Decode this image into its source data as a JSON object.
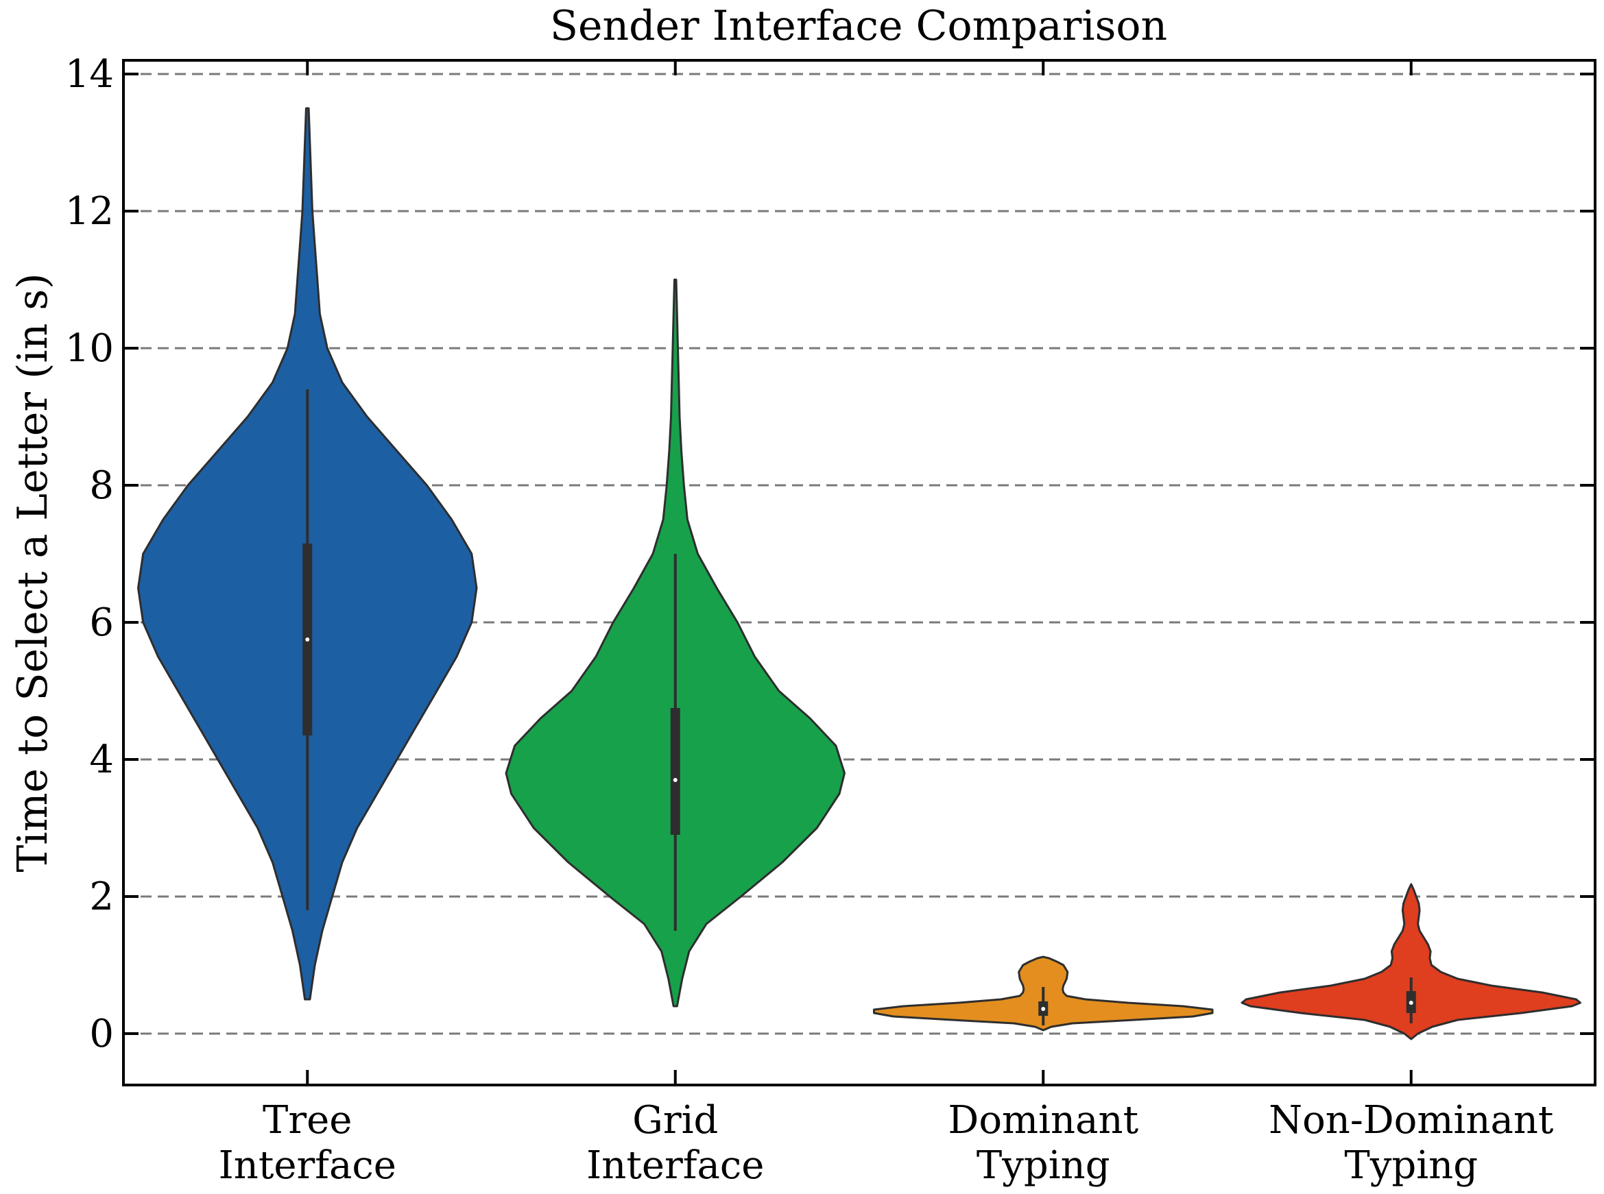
{
  "chart_data": {
    "type": "violin",
    "title": "Sender Interface Comparison",
    "xlabel": "",
    "ylabel": "Time to Select a Letter (in s)",
    "ylim": [
      -0.75,
      14.2
    ],
    "yticks": [
      0,
      2,
      4,
      6,
      8,
      10,
      12,
      14
    ],
    "grid": {
      "y": true,
      "style": "dashed"
    },
    "categories": [
      {
        "lines": [
          "Tree",
          "Interface"
        ]
      },
      {
        "lines": [
          "Grid",
          "Interface"
        ]
      },
      {
        "lines": [
          "Dominant",
          "Typing"
        ]
      },
      {
        "lines": [
          "Non-Dominant",
          "Typing"
        ]
      }
    ],
    "series": [
      {
        "color": "#1d5fa3",
        "min": 0.5,
        "max": 13.5,
        "q1": 4.35,
        "median": 5.75,
        "q3": 7.15,
        "whisker_low": 1.8,
        "whisker_high": 9.4,
        "density": [
          [
            0.5,
            0.01
          ],
          [
            1.0,
            0.03
          ],
          [
            1.5,
            0.06
          ],
          [
            2.0,
            0.1
          ],
          [
            2.5,
            0.14
          ],
          [
            3.0,
            0.2
          ],
          [
            3.5,
            0.28
          ],
          [
            4.0,
            0.36
          ],
          [
            4.5,
            0.44
          ],
          [
            5.0,
            0.52
          ],
          [
            5.5,
            0.6
          ],
          [
            6.0,
            0.66
          ],
          [
            6.5,
            0.68
          ],
          [
            7.0,
            0.66
          ],
          [
            7.5,
            0.58
          ],
          [
            8.0,
            0.48
          ],
          [
            8.5,
            0.36
          ],
          [
            9.0,
            0.24
          ],
          [
            9.5,
            0.14
          ],
          [
            10.0,
            0.08
          ],
          [
            10.5,
            0.05
          ],
          [
            11.0,
            0.04
          ],
          [
            11.5,
            0.03
          ],
          [
            12.0,
            0.02
          ],
          [
            12.5,
            0.015
          ],
          [
            13.0,
            0.01
          ],
          [
            13.5,
            0.005
          ]
        ]
      },
      {
        "color": "#17a14b",
        "min": 0.4,
        "max": 11.0,
        "q1": 2.9,
        "median": 3.7,
        "q3": 4.75,
        "whisker_low": 1.5,
        "whisker_high": 7.0,
        "density": [
          [
            0.4,
            0.01
          ],
          [
            0.8,
            0.04
          ],
          [
            1.2,
            0.08
          ],
          [
            1.6,
            0.18
          ],
          [
            2.0,
            0.38
          ],
          [
            2.5,
            0.62
          ],
          [
            3.0,
            0.82
          ],
          [
            3.5,
            0.95
          ],
          [
            3.8,
            0.98
          ],
          [
            4.2,
            0.93
          ],
          [
            4.6,
            0.78
          ],
          [
            5.0,
            0.6
          ],
          [
            5.5,
            0.46
          ],
          [
            6.0,
            0.36
          ],
          [
            6.5,
            0.24
          ],
          [
            7.0,
            0.13
          ],
          [
            7.5,
            0.07
          ],
          [
            8.0,
            0.05
          ],
          [
            8.5,
            0.035
          ],
          [
            9.0,
            0.025
          ],
          [
            9.5,
            0.02
          ],
          [
            10.0,
            0.015
          ],
          [
            10.5,
            0.01
          ],
          [
            11.0,
            0.005
          ]
        ]
      },
      {
        "color": "#e38e1e",
        "min": 0.05,
        "max": 1.12,
        "q1": 0.26,
        "median": 0.36,
        "q3": 0.47,
        "whisker_low": 0.12,
        "whisker_high": 0.68,
        "density": [
          [
            0.05,
            0.0
          ],
          [
            0.1,
            0.25
          ],
          [
            0.15,
            0.9
          ],
          [
            0.2,
            2.8
          ],
          [
            0.25,
            4.6
          ],
          [
            0.3,
            5.2
          ],
          [
            0.35,
            5.2
          ],
          [
            0.4,
            4.3
          ],
          [
            0.45,
            2.6
          ],
          [
            0.5,
            1.3
          ],
          [
            0.55,
            0.72
          ],
          [
            0.6,
            0.62
          ],
          [
            0.65,
            0.6
          ],
          [
            0.7,
            0.62
          ],
          [
            0.8,
            0.72
          ],
          [
            0.9,
            0.75
          ],
          [
            1.0,
            0.62
          ],
          [
            1.05,
            0.42
          ],
          [
            1.1,
            0.18
          ],
          [
            1.12,
            0.0
          ]
        ]
      },
      {
        "color": "#df3e1f",
        "min": -0.08,
        "max": 2.18,
        "q1": 0.3,
        "median": 0.45,
        "q3": 0.62,
        "whisker_low": 0.15,
        "whisker_high": 0.82,
        "density": [
          [
            -0.08,
            0.0
          ],
          [
            0.0,
            0.08
          ],
          [
            0.1,
            0.25
          ],
          [
            0.2,
            0.55
          ],
          [
            0.3,
            1.3
          ],
          [
            0.4,
            1.9
          ],
          [
            0.45,
            2.0
          ],
          [
            0.5,
            1.95
          ],
          [
            0.6,
            1.55
          ],
          [
            0.7,
            0.95
          ],
          [
            0.8,
            0.55
          ],
          [
            0.9,
            0.35
          ],
          [
            1.0,
            0.24
          ],
          [
            1.1,
            0.22
          ],
          [
            1.2,
            0.23
          ],
          [
            1.3,
            0.2
          ],
          [
            1.4,
            0.15
          ],
          [
            1.5,
            0.1
          ],
          [
            1.6,
            0.08
          ],
          [
            1.7,
            0.09
          ],
          [
            1.8,
            0.1
          ],
          [
            1.9,
            0.09
          ],
          [
            2.0,
            0.06
          ],
          [
            2.1,
            0.03
          ],
          [
            2.18,
            0.0
          ]
        ]
      }
    ]
  }
}
